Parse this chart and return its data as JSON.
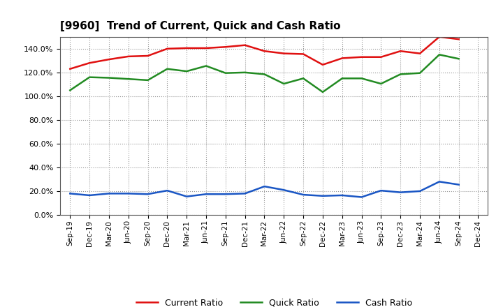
{
  "title": "[9960]  Trend of Current, Quick and Cash Ratio",
  "labels": [
    "Sep-19",
    "Dec-19",
    "Mar-20",
    "Jun-20",
    "Sep-20",
    "Dec-20",
    "Mar-21",
    "Jun-21",
    "Sep-21",
    "Dec-21",
    "Mar-22",
    "Jun-22",
    "Sep-22",
    "Dec-22",
    "Mar-23",
    "Jun-23",
    "Sep-23",
    "Dec-23",
    "Mar-24",
    "Jun-24",
    "Sep-24",
    "Dec-24"
  ],
  "current_ratio": [
    123.0,
    128.0,
    131.0,
    133.5,
    134.0,
    140.0,
    140.5,
    140.5,
    141.5,
    143.0,
    138.0,
    136.0,
    135.5,
    126.5,
    132.0,
    133.0,
    133.0,
    138.0,
    136.0,
    150.0,
    148.0,
    null
  ],
  "quick_ratio": [
    105.0,
    116.0,
    115.5,
    114.5,
    113.5,
    123.0,
    121.0,
    125.5,
    119.5,
    120.0,
    118.5,
    110.5,
    115.0,
    103.5,
    115.0,
    115.0,
    110.5,
    118.5,
    119.5,
    135.0,
    131.5,
    null
  ],
  "cash_ratio": [
    18.0,
    16.5,
    18.0,
    18.0,
    17.5,
    20.5,
    15.5,
    17.5,
    17.5,
    18.0,
    24.0,
    21.0,
    17.0,
    16.0,
    16.5,
    15.0,
    20.5,
    19.0,
    20.0,
    28.0,
    25.5,
    null
  ],
  "ylim": [
    0,
    150
  ],
  "yticks": [
    0,
    20,
    40,
    60,
    80,
    100,
    120,
    140
  ],
  "current_color": "#e01010",
  "quick_color": "#228B22",
  "cash_color": "#1a56c4",
  "line_width": 1.8,
  "background_color": "#ffffff",
  "grid_color": "#999999",
  "legend_labels": [
    "Current Ratio",
    "Quick Ratio",
    "Cash Ratio"
  ]
}
